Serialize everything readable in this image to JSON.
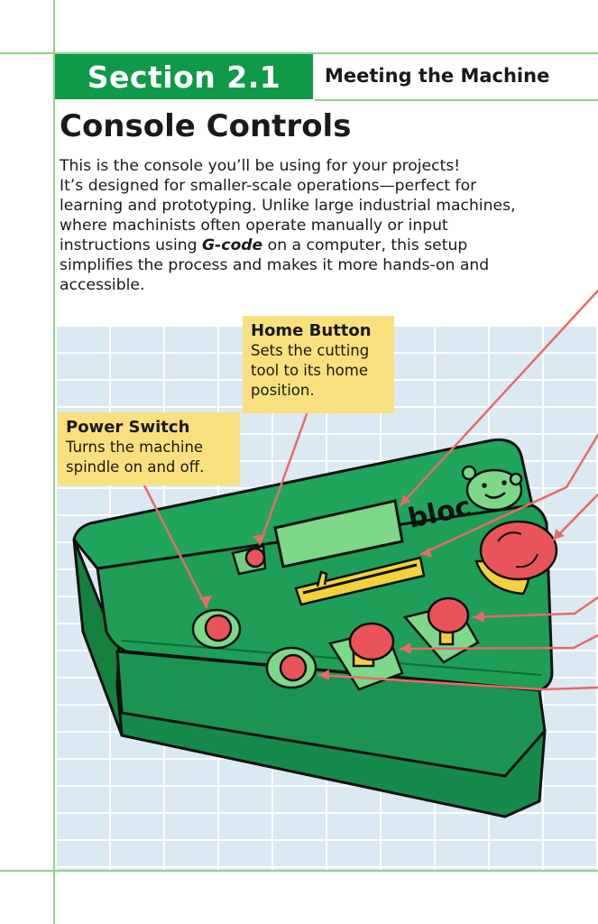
{
  "section": {
    "number": "Section 2.1",
    "title": "Meeting the Machine"
  },
  "page_title": "Console Controls",
  "intro": {
    "line1": "This is the console you’ll be using for your projects!",
    "line2": "It’s designed for smaller-scale operations—perfect for",
    "line3": "learning and prototyping. Unlike large industrial machines,",
    "line4": "where machinists often operate manually or input",
    "line5_a": "instructions using ",
    "line5_code": "G-code",
    "line5_b": " on a computer, this setup",
    "line6": "simplifies the process and makes it more hands-on and",
    "line7": "accessible."
  },
  "callouts": {
    "home": {
      "title": "Home Button",
      "desc_1": "Sets the cutting",
      "desc_2": "tool to its home",
      "desc_3": "position."
    },
    "power": {
      "title": "Power Switch",
      "desc_1": "Turns the machine",
      "desc_2": "spindle on and off."
    }
  },
  "console": {
    "brand": "bloc"
  },
  "colors": {
    "accent_green": "#109a48",
    "console_green": "#1e9e57",
    "callout_yellow": "#f8e07e",
    "leader_red": "#e86a6a",
    "button_red": "#e8545a",
    "grid_blue": "#dbe9f2"
  }
}
